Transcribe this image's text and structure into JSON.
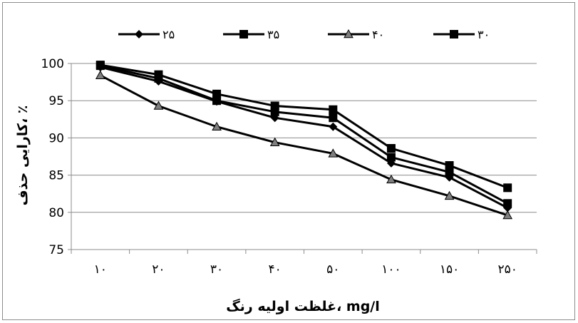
{
  "chart_data": {
    "type": "line",
    "categories": [
      "۱۰",
      "۲۰",
      "۳۰",
      "۴۰",
      "۵۰",
      "۱۰۰",
      "۱۵۰",
      "۲۵۰"
    ],
    "series": [
      {
        "name": "۲۵",
        "marker": "diamond",
        "color": "#000000",
        "values": [
          99.5,
          97.6,
          94.9,
          92.7,
          91.5,
          86.6,
          84.7,
          80.6
        ]
      },
      {
        "name": "۳۵",
        "marker": "square",
        "color": "#000000",
        "values": [
          99.8,
          98.5,
          95.9,
          94.3,
          93.8,
          88.6,
          86.3,
          83.3
        ]
      },
      {
        "name": "۴۰",
        "marker": "triangle",
        "color": "#000000",
        "values": [
          98.4,
          94.3,
          91.5,
          89.4,
          87.9,
          84.4,
          82.2,
          79.6
        ]
      },
      {
        "name": "۳۰",
        "marker": "square",
        "color": "#000000",
        "values": [
          99.7,
          98.0,
          95.0,
          93.5,
          92.7,
          87.4,
          85.4,
          81.2
        ]
      }
    ],
    "xlabel": "غلظت اولیه رنگ، mg/l",
    "ylabel": "کارایی حذف، ٪",
    "ylim": [
      75,
      100
    ],
    "yticks": [
      "75",
      "80",
      "85",
      "90",
      "95",
      "100"
    ],
    "grid": "horizontal",
    "legend": "top"
  }
}
